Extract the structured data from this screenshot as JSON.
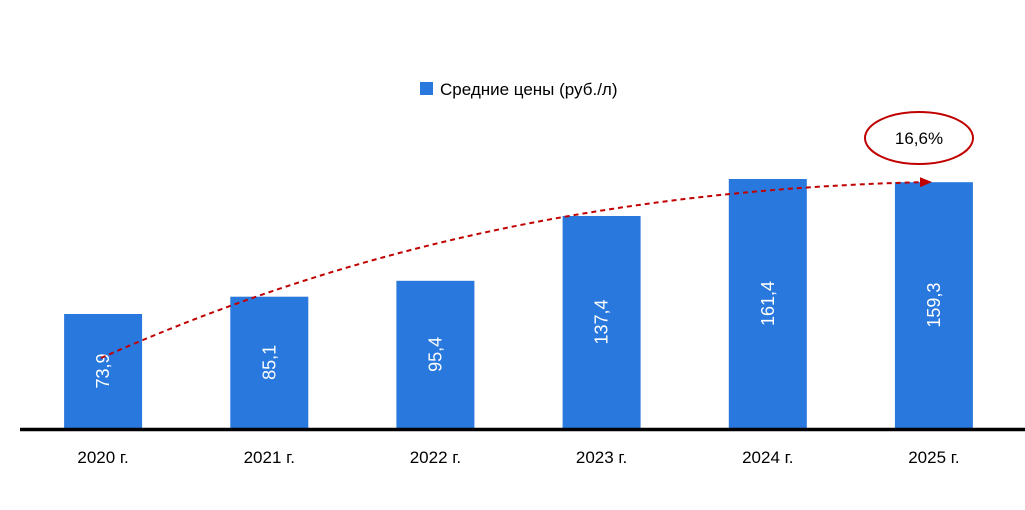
{
  "chart_data": {
    "type": "bar",
    "categories": [
      "2020 г.",
      "2021 г.",
      "2022 г.",
      "2023 г.",
      "2024 г.",
      "2025 г."
    ],
    "series": [
      {
        "name": "Средние цены (руб./л)",
        "values": [
          73.9,
          85.1,
          95.4,
          137.4,
          161.4,
          159.3
        ]
      }
    ],
    "data_labels": [
      "73,9",
      "85,1",
      "95,4",
      "137,4",
      "161,4",
      "159,3"
    ],
    "annotation": "16,6%",
    "ylim": [
      0,
      165
    ],
    "legend_position": "top",
    "grid": false,
    "colors": {
      "bar": "#2878DD",
      "trend": "#C00000",
      "axis": "#000000"
    }
  }
}
